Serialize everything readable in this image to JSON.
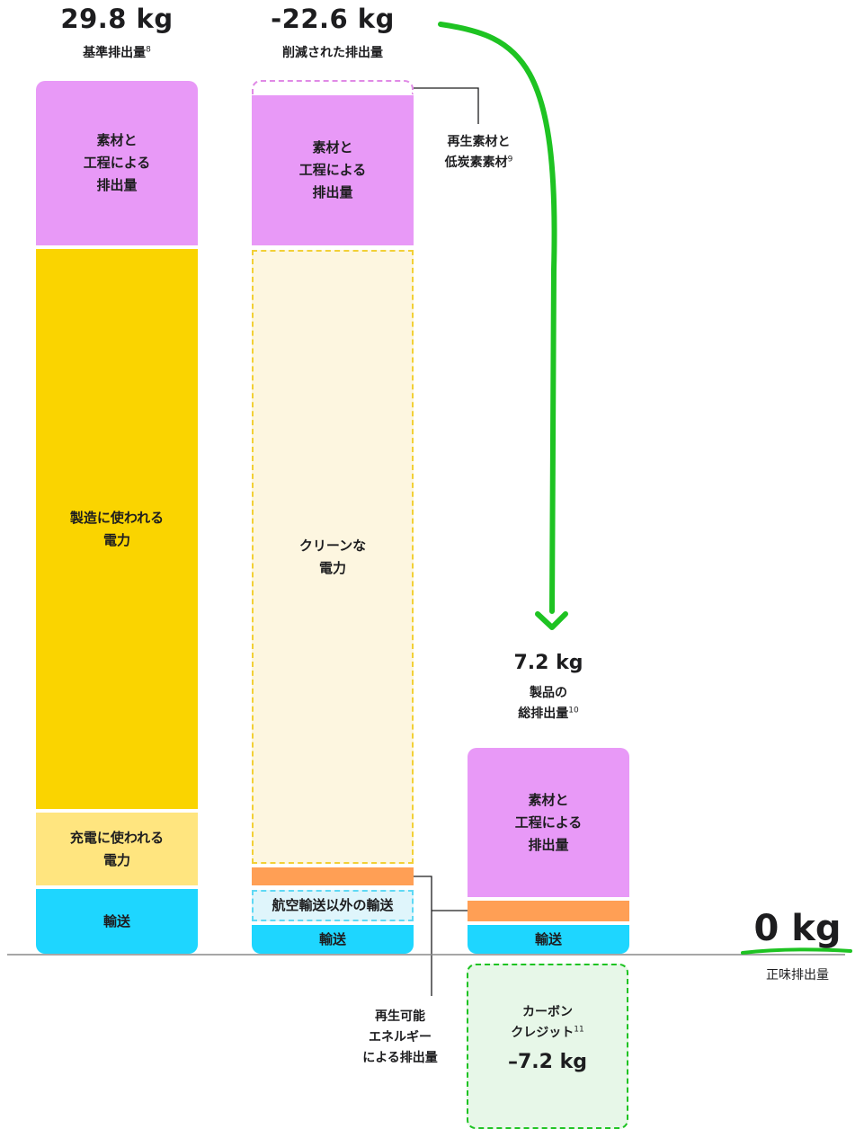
{
  "chart_data": {
    "type": "bar",
    "unit": "kg",
    "columns": [
      {
        "value_label": "29.8 kg",
        "caption": "基準排出量",
        "caption_sup": "8",
        "segments": [
          {
            "label": "素材と\n工程による\n排出量",
            "color": "#e899f7"
          },
          {
            "label": "製造に使われる\n電力",
            "color": "#fad400"
          },
          {
            "label": "充電に使われる\n電力",
            "color": "#ffe57f"
          },
          {
            "label": "輸送",
            "color": "#1ed6ff"
          }
        ]
      },
      {
        "value_label": "-22.6 kg",
        "caption": "削減された排出量",
        "segments": [
          {
            "label": "素材と\n工程による\n排出量",
            "color": "#e899f7"
          },
          {
            "label": "クリーンな\n電力",
            "color": "#fdf6e0"
          },
          {
            "label": "航空輸送以外の輸送",
            "color": "#dff5fb"
          },
          {
            "label": "輸送",
            "color": "#1ed6ff"
          }
        ]
      },
      {
        "value_label": "7.2 kg",
        "caption": "製品の\n総排出量",
        "caption_sup": "10",
        "segments": [
          {
            "label": "素材と\n工程による\n排出量",
            "color": "#e899f7"
          },
          {
            "label": "輸送",
            "color": "#1ed6ff"
          }
        ]
      }
    ],
    "carbon_credit": {
      "label": "カーボン\nクレジット",
      "label_sup": "11",
      "value_label": "–7.2 kg"
    },
    "net": {
      "value_label": "0 kg",
      "caption": "正味排出量"
    },
    "callouts": {
      "recycled": {
        "text": "再生素材と\n低炭素素材",
        "sup": "9"
      },
      "renewable": {
        "text": "再生可能\nエネルギー\nによる排出量"
      }
    },
    "colors": {
      "materials": "#e899f7",
      "manufacturing": "#fad400",
      "charging": "#ffe57f",
      "transport": "#1ed6ff",
      "renewable": "#ff9f55",
      "arrow": "#1ec322",
      "credit_bg": "#e7f7e8"
    }
  }
}
